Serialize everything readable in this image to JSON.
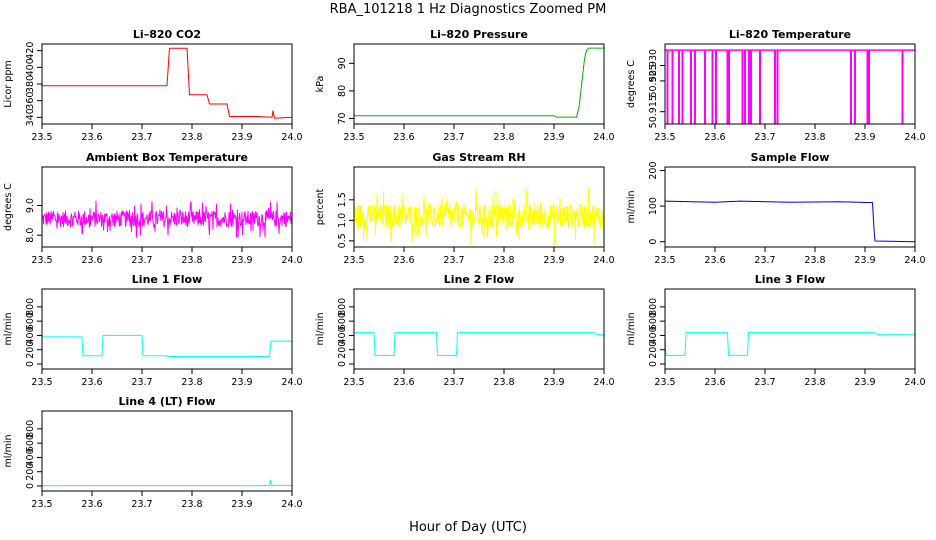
{
  "figure": {
    "title": "RBA_101218  1 Hz Diagnostics Zoomed PM",
    "xlabel": "Hour of Day (UTC)"
  },
  "chart_data": [
    {
      "type": "line",
      "title": "Li–820 CO2",
      "ylabel": "Licor ppm",
      "color": "#ff0000",
      "xlim": [
        23.5,
        24.0
      ],
      "ylim": [
        332,
        428
      ],
      "xticks": [
        "23.5",
        "23.6",
        "23.7",
        "23.8",
        "23.9",
        "24.0"
      ],
      "yticks": [
        340,
        360,
        380,
        400,
        420
      ],
      "x": [
        23.5,
        23.75,
        23.755,
        23.79,
        23.795,
        23.83,
        23.835,
        23.87,
        23.875,
        23.93,
        23.96,
        23.962,
        23.965,
        24.0
      ],
      "y": [
        378,
        378,
        423,
        423,
        367,
        367,
        356,
        356,
        341,
        341,
        340,
        348,
        339,
        340
      ]
    },
    {
      "type": "line",
      "title": "Li–820 Pressure",
      "ylabel": "kPa",
      "color": "#00b000",
      "xlim": [
        23.5,
        24.0
      ],
      "ylim": [
        68,
        97
      ],
      "xticks": [
        "23.5",
        "23.6",
        "23.7",
        "23.8",
        "23.9",
        "24.0"
      ],
      "yticks": [
        70,
        80,
        90
      ],
      "x": [
        23.5,
        23.9,
        23.905,
        23.945,
        23.95,
        23.955,
        23.96,
        23.963,
        23.966,
        23.97,
        24.0
      ],
      "y": [
        71,
        71,
        70.5,
        70.5,
        74,
        82,
        90,
        93.5,
        95,
        95.5,
        95.5
      ]
    },
    {
      "type": "line",
      "title": "Li–820 Temperature",
      "ylabel": "degrees C",
      "color": "#ff00ff",
      "xlim": [
        23.5,
        24.0
      ],
      "ylim": [
        50.911,
        50.937
      ],
      "xticks": [
        "23.5",
        "23.6",
        "23.7",
        "23.8",
        "23.9",
        "24.0"
      ],
      "yticks": [
        "50.915",
        "50.925",
        "50.930"
      ],
      "baseline": 50.935,
      "drop": 50.911,
      "spikes": [
        23.505,
        23.515,
        23.528,
        23.535,
        23.552,
        23.56,
        23.58,
        23.595,
        23.602,
        23.625,
        23.628,
        23.655,
        23.66,
        23.668,
        23.672,
        23.69,
        23.72,
        23.725,
        23.872,
        23.88,
        23.905,
        23.908,
        23.975
      ]
    },
    {
      "type": "line",
      "title": "Ambient Box Temperature",
      "ylabel": "degrees C",
      "color": "#ff00ff",
      "xlim": [
        23.5,
        24.0
      ],
      "ylim": [
        7.6,
        10.3
      ],
      "xticks": [
        "23.5",
        "23.6",
        "23.7",
        "23.8",
        "23.9",
        "24.0"
      ],
      "yticks": [
        "8.0",
        "9.0"
      ],
      "noise": {
        "center": 8.55,
        "spread": 0.45,
        "max": 10.1,
        "min": 7.75
      }
    },
    {
      "type": "line",
      "title": "Gas Stream RH",
      "ylabel": "percent",
      "color": "#ffff00",
      "xlim": [
        23.5,
        24.0
      ],
      "ylim": [
        0.35,
        2.3
      ],
      "xticks": [
        "23.5",
        "23.6",
        "23.7",
        "23.8",
        "23.9",
        "24.0"
      ],
      "yticks": [
        "0.5",
        "1.0",
        "1.5"
      ],
      "noise": {
        "center": 1.1,
        "spread": 0.5,
        "max": 2.0,
        "min": 0.4
      }
    },
    {
      "type": "line",
      "title": "Sample Flow",
      "ylabel": "ml/min",
      "color": "#0000cc",
      "xlim": [
        23.5,
        24.0
      ],
      "ylim": [
        -15,
        210
      ],
      "xticks": [
        "23.5",
        "23.6",
        "23.7",
        "23.8",
        "23.9",
        "24.0"
      ],
      "yticks": [
        0,
        100,
        200
      ],
      "x": [
        23.5,
        23.6,
        23.65,
        23.75,
        23.85,
        23.915,
        23.918,
        23.92,
        24.0
      ],
      "y": [
        114,
        111,
        114,
        111,
        112,
        110,
        35,
        2,
        0
      ]
    },
    {
      "type": "line",
      "title": "Line 1 Flow",
      "ylabel": "ml/min",
      "color": "#00ffff",
      "xlim": [
        23.5,
        24.0
      ],
      "ylim": [
        -70,
        1050
      ],
      "xticks": [
        "23.5",
        "23.6",
        "23.7",
        "23.8",
        "23.9",
        "24.0"
      ],
      "yticks": [
        0,
        200,
        400,
        600,
        800
      ],
      "x": [
        23.5,
        23.58,
        23.582,
        23.62,
        23.622,
        23.7,
        23.702,
        23.75,
        23.752,
        23.955,
        23.958,
        24.0
      ],
      "y": [
        380,
        380,
        115,
        115,
        400,
        400,
        115,
        115,
        105,
        105,
        320,
        320
      ]
    },
    {
      "type": "line",
      "title": "Line 2 Flow",
      "ylabel": "ml/min",
      "color": "#00ffff",
      "xlim": [
        23.5,
        24.0
      ],
      "ylim": [
        -70,
        1050
      ],
      "xticks": [
        "23.5",
        "23.6",
        "23.7",
        "23.8",
        "23.9",
        "24.0"
      ],
      "yticks": [
        0,
        200,
        400,
        600,
        800
      ],
      "x": [
        23.5,
        23.54,
        23.542,
        23.58,
        23.582,
        23.665,
        23.667,
        23.705,
        23.707,
        23.98,
        23.985,
        24.0
      ],
      "y": [
        440,
        440,
        120,
        120,
        440,
        440,
        120,
        120,
        440,
        440,
        410,
        410
      ]
    },
    {
      "type": "line",
      "title": "Line 3 Flow",
      "ylabel": "ml/min",
      "color": "#00ffff",
      "xlim": [
        23.5,
        24.0
      ],
      "ylim": [
        -70,
        1050
      ],
      "xticks": [
        "23.5",
        "23.6",
        "23.7",
        "23.8",
        "23.9",
        "24.0"
      ],
      "yticks": [
        0,
        200,
        400,
        600,
        800
      ],
      "x": [
        23.5,
        23.502,
        23.54,
        23.542,
        23.625,
        23.627,
        23.665,
        23.667,
        23.92,
        23.925,
        24.0
      ],
      "y": [
        400,
        120,
        120,
        440,
        440,
        120,
        120,
        440,
        440,
        410,
        410
      ]
    },
    {
      "type": "line",
      "title": "Line 4 (LT) Flow",
      "ylabel": "ml/min",
      "color": "#00ffff",
      "xlim": [
        23.5,
        24.0
      ],
      "ylim": [
        -70,
        1050
      ],
      "xticks": [
        "23.5",
        "23.6",
        "23.7",
        "23.8",
        "23.9",
        "24.0"
      ],
      "yticks": [
        0,
        200,
        400,
        600,
        800
      ],
      "x": [
        23.5,
        23.955,
        23.957,
        23.959,
        24.0
      ],
      "y": [
        5,
        5,
        80,
        8,
        8
      ]
    }
  ]
}
